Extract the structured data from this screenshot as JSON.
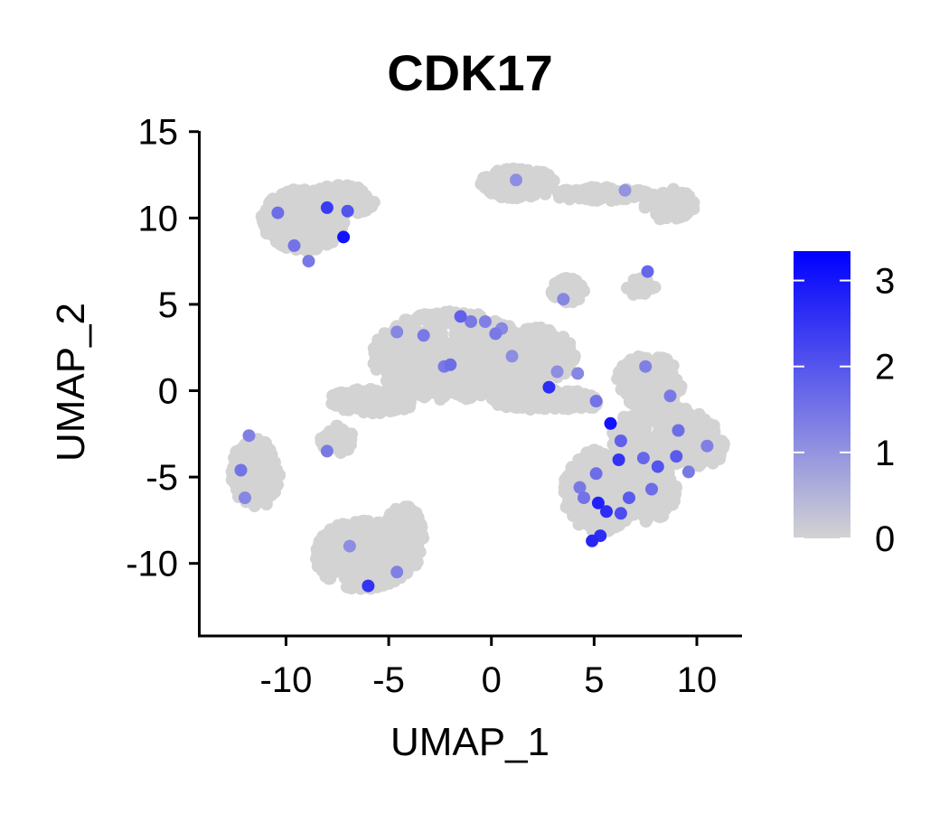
{
  "chart_data": {
    "type": "scatter",
    "title": "CDK17",
    "xlabel": "UMAP_1",
    "ylabel": "UMAP_2",
    "xlim": [
      -14.2,
      12.2
    ],
    "ylim": [
      -14.2,
      15.3
    ],
    "xticks": [
      {
        "value": -10,
        "label": "-10"
      },
      {
        "value": -5,
        "label": "-5"
      },
      {
        "value": 0,
        "label": "0"
      },
      {
        "value": 5,
        "label": "5"
      },
      {
        "value": 10,
        "label": "10"
      }
    ],
    "yticks": [
      {
        "value": 15,
        "label": "15"
      },
      {
        "value": 10,
        "label": "10"
      },
      {
        "value": 5,
        "label": "5"
      },
      {
        "value": 0,
        "label": "0"
      },
      {
        "value": -5,
        "label": "-5"
      },
      {
        "value": -10,
        "label": "-10"
      }
    ],
    "grid": false,
    "color_scale": {
      "low_color": "#d3d3d3",
      "high_color": "#0000ff",
      "min": 0,
      "max": 3.3,
      "ticks": [
        {
          "value": 0,
          "label": "0"
        },
        {
          "value": 1,
          "label": "1"
        },
        {
          "value": 2,
          "label": "2"
        },
        {
          "value": 3,
          "label": "3"
        }
      ],
      "legend_placement": "right"
    },
    "clusters": [
      {
        "cx": -9.1,
        "cy": 9.9,
        "rx": 2.1,
        "ry": 1.8,
        "n": 340
      },
      {
        "cx": -7.3,
        "cy": 11.0,
        "rx": 1.6,
        "ry": 0.9,
        "n": 120
      },
      {
        "cx": -11.5,
        "cy": -4.8,
        "rx": 1.2,
        "ry": 2.0,
        "n": 200
      },
      {
        "cx": -6.2,
        "cy": -9.5,
        "rx": 2.4,
        "ry": 2.0,
        "n": 380
      },
      {
        "cx": -4.3,
        "cy": -8.6,
        "rx": 1.0,
        "ry": 2.0,
        "n": 130
      },
      {
        "cx": -2.0,
        "cy": 2.0,
        "rx": 3.8,
        "ry": 2.6,
        "n": 600
      },
      {
        "cx": 1.5,
        "cy": 2.0,
        "rx": 2.6,
        "ry": 1.8,
        "n": 300
      },
      {
        "cx": -5.8,
        "cy": -0.6,
        "rx": 2.2,
        "ry": 0.7,
        "n": 150
      },
      {
        "cx": -7.5,
        "cy": -2.8,
        "rx": 0.8,
        "ry": 0.8,
        "n": 40
      },
      {
        "cx": 2.5,
        "cy": -0.5,
        "rx": 2.6,
        "ry": 0.6,
        "n": 120
      },
      {
        "cx": 3.7,
        "cy": 5.8,
        "rx": 0.8,
        "ry": 0.8,
        "n": 60
      },
      {
        "cx": 7.2,
        "cy": 6.0,
        "rx": 0.8,
        "ry": 0.5,
        "n": 25
      },
      {
        "cx": 1.3,
        "cy": 12.0,
        "rx": 1.8,
        "ry": 0.9,
        "n": 180
      },
      {
        "cx": 5.3,
        "cy": 11.4,
        "rx": 2.4,
        "ry": 0.4,
        "n": 90
      },
      {
        "cx": 8.6,
        "cy": 10.8,
        "rx": 1.3,
        "ry": 0.9,
        "n": 100
      },
      {
        "cx": 7.7,
        "cy": 0.5,
        "rx": 1.6,
        "ry": 1.6,
        "n": 160
      },
      {
        "cx": 8.4,
        "cy": -2.6,
        "rx": 2.6,
        "ry": 1.7,
        "n": 300
      },
      {
        "cx": 10.2,
        "cy": -3.4,
        "rx": 1.2,
        "ry": 1.0,
        "n": 100
      },
      {
        "cx": 5.3,
        "cy": -5.8,
        "rx": 1.8,
        "ry": 2.4,
        "n": 380
      },
      {
        "cx": 7.4,
        "cy": -5.8,
        "rx": 1.6,
        "ry": 1.8,
        "n": 220
      },
      {
        "cx": 4.3,
        "cy": -0.7,
        "rx": 1.0,
        "ry": 0.5,
        "n": 40
      }
    ],
    "highlighted_points": [
      {
        "x": -8.0,
        "y": 10.6,
        "value": 2.4
      },
      {
        "x": -7.0,
        "y": 10.4,
        "value": 2.0
      },
      {
        "x": -10.4,
        "y": 10.3,
        "value": 1.6
      },
      {
        "x": -7.2,
        "y": 8.9,
        "value": 3.0
      },
      {
        "x": -9.6,
        "y": 8.4,
        "value": 1.5
      },
      {
        "x": -8.9,
        "y": 7.5,
        "value": 1.4
      },
      {
        "x": -11.8,
        "y": -2.6,
        "value": 1.3
      },
      {
        "x": -12.2,
        "y": -4.6,
        "value": 1.5
      },
      {
        "x": -12.0,
        "y": -6.2,
        "value": 1.2
      },
      {
        "x": -8.0,
        "y": -3.5,
        "value": 1.4
      },
      {
        "x": -6.0,
        "y": -11.3,
        "value": 2.5
      },
      {
        "x": -6.9,
        "y": -9.0,
        "value": 1.1
      },
      {
        "x": -4.6,
        "y": -10.5,
        "value": 1.3
      },
      {
        "x": -4.6,
        "y": 3.4,
        "value": 1.2
      },
      {
        "x": -3.3,
        "y": 3.2,
        "value": 1.4
      },
      {
        "x": -2.3,
        "y": 1.4,
        "value": 1.4
      },
      {
        "x": -2.0,
        "y": 1.5,
        "value": 1.6
      },
      {
        "x": -1.5,
        "y": 4.3,
        "value": 1.8
      },
      {
        "x": -1.0,
        "y": 4.0,
        "value": 1.4
      },
      {
        "x": -0.3,
        "y": 4.0,
        "value": 1.3
      },
      {
        "x": 0.2,
        "y": 3.3,
        "value": 1.4
      },
      {
        "x": 0.5,
        "y": 3.6,
        "value": 1.2
      },
      {
        "x": 1.0,
        "y": 2.0,
        "value": 1.1
      },
      {
        "x": 2.8,
        "y": 0.2,
        "value": 2.6
      },
      {
        "x": 3.2,
        "y": 1.1,
        "value": 1.1
      },
      {
        "x": 4.2,
        "y": 1.0,
        "value": 1.2
      },
      {
        "x": 5.1,
        "y": -0.6,
        "value": 1.5
      },
      {
        "x": 3.5,
        "y": 5.3,
        "value": 1.2
      },
      {
        "x": 7.6,
        "y": 6.9,
        "value": 1.7
      },
      {
        "x": 6.5,
        "y": 11.6,
        "value": 1.0
      },
      {
        "x": 1.2,
        "y": 12.2,
        "value": 1.1
      },
      {
        "x": 5.8,
        "y": -1.9,
        "value": 3.0
      },
      {
        "x": 6.3,
        "y": -2.9,
        "value": 1.8
      },
      {
        "x": 7.5,
        "y": 1.4,
        "value": 1.3
      },
      {
        "x": 8.7,
        "y": -0.3,
        "value": 1.4
      },
      {
        "x": 9.1,
        "y": -2.3,
        "value": 1.6
      },
      {
        "x": 9.0,
        "y": -3.8,
        "value": 1.9
      },
      {
        "x": 8.1,
        "y": -4.4,
        "value": 2.0
      },
      {
        "x": 7.4,
        "y": -3.9,
        "value": 1.7
      },
      {
        "x": 6.2,
        "y": -4.0,
        "value": 2.5
      },
      {
        "x": 5.1,
        "y": -4.8,
        "value": 1.6
      },
      {
        "x": 4.3,
        "y": -5.6,
        "value": 1.4
      },
      {
        "x": 5.2,
        "y": -6.5,
        "value": 2.8
      },
      {
        "x": 5.6,
        "y": -7.0,
        "value": 2.6
      },
      {
        "x": 6.3,
        "y": -7.1,
        "value": 2.1
      },
      {
        "x": 5.3,
        "y": -8.4,
        "value": 2.6
      },
      {
        "x": 4.9,
        "y": -8.7,
        "value": 2.7
      },
      {
        "x": 6.7,
        "y": -6.2,
        "value": 1.9
      },
      {
        "x": 7.8,
        "y": -5.7,
        "value": 1.6
      },
      {
        "x": 9.6,
        "y": -4.7,
        "value": 1.4
      },
      {
        "x": 10.5,
        "y": -3.2,
        "value": 1.3
      },
      {
        "x": 4.5,
        "y": -6.2,
        "value": 1.5
      }
    ]
  }
}
